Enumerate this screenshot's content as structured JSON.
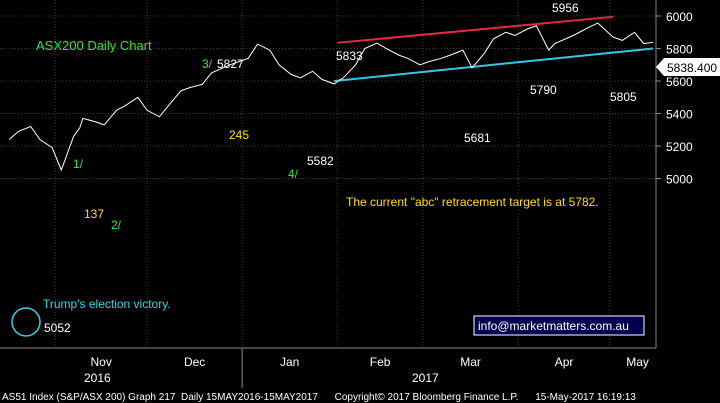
{
  "chart_data": {
    "type": "line",
    "title": "ASX200 Daily Chart",
    "ylim": [
      4960,
      6070
    ],
    "y_ticks": [
      "6000",
      "5800",
      "5600",
      "5400",
      "5200",
      "5000"
    ],
    "x_ticks": [
      "Nov",
      "Dec",
      "Jan",
      "Feb",
      "Mar",
      "Apr",
      "May"
    ],
    "year_labels": [
      "2016",
      "2017"
    ],
    "last_price": "5838.400",
    "series": [
      {
        "x": [
          "2016-10-17",
          "2016-10-20",
          "2016-10-24",
          "2016-10-27",
          "2016-10-31",
          "2016-11-03",
          "2016-11-07",
          "2016-11-09",
          "2016-11-10",
          "2016-11-14",
          "2016-11-17",
          "2016-11-21",
          "2016-11-24",
          "2016-11-28",
          "2016-12-01",
          "2016-12-05",
          "2016-12-08",
          "2016-12-12",
          "2016-12-15",
          "2016-12-19",
          "2016-12-22",
          "2016-12-28",
          "2017-01-03",
          "2017-01-06",
          "2017-01-10",
          "2017-01-13",
          "2017-01-17",
          "2017-01-20",
          "2017-01-24",
          "2017-01-27",
          "2017-01-31",
          "2017-02-03",
          "2017-02-07",
          "2017-02-10",
          "2017-02-14",
          "2017-02-17",
          "2017-02-21",
          "2017-02-24",
          "2017-02-28",
          "2017-03-03",
          "2017-03-07",
          "2017-03-10",
          "2017-03-14",
          "2017-03-17",
          "2017-03-21",
          "2017-03-24",
          "2017-03-28",
          "2017-03-31",
          "2017-04-04",
          "2017-04-07",
          "2017-04-11",
          "2017-04-13",
          "2017-04-19",
          "2017-04-24",
          "2017-04-27",
          "2017-05-02",
          "2017-05-05",
          "2017-05-09",
          "2017-05-12",
          "2017-05-15"
        ],
        "values": [
          5240,
          5290,
          5320,
          5240,
          5190,
          5052,
          5260,
          5310,
          5370,
          5350,
          5330,
          5420,
          5450,
          5500,
          5420,
          5380,
          5450,
          5540,
          5560,
          5580,
          5650,
          5700,
          5740,
          5827,
          5790,
          5700,
          5640,
          5620,
          5660,
          5610,
          5582,
          5620,
          5700,
          5800,
          5833,
          5800,
          5760,
          5740,
          5700,
          5720,
          5740,
          5760,
          5790,
          5681,
          5770,
          5860,
          5900,
          5880,
          5920,
          5940,
          5790,
          5830,
          5880,
          5930,
          5956,
          5870,
          5850,
          5900,
          5830,
          5838
        ]
      }
    ],
    "annotations": [
      {
        "text": "3/",
        "color": "#33e533"
      },
      {
        "text": "5827",
        "color": "#ffffff"
      },
      {
        "text": "5833",
        "color": "#ffffff"
      },
      {
        "text": "5956",
        "color": "#ffffff"
      },
      {
        "text": "1/",
        "color": "#33e533"
      },
      {
        "text": "245",
        "color": "#ffe100"
      },
      {
        "text": "137",
        "color": "#ffe100"
      },
      {
        "text": "2/",
        "color": "#33e533"
      },
      {
        "text": "5582",
        "color": "#ffffff"
      },
      {
        "text": "4/",
        "color": "#33e533"
      },
      {
        "text": "5681",
        "color": "#ffffff"
      },
      {
        "text": "5790",
        "color": "#ffffff"
      },
      {
        "text": "5805",
        "color": "#ffffff"
      },
      {
        "text": "5052",
        "color": "#ffffff"
      },
      {
        "text": "Trump's election victory.",
        "color": "#33d6e6"
      },
      {
        "text": "The current \"abc\" retracement target is at 5782.",
        "color": "#ffe100"
      }
    ],
    "trendlines": [
      {
        "name": "upper-channel",
        "color": "#e8283c",
        "from": [
          "2017-02-01",
          5835
        ],
        "to": [
          "2017-05-02",
          5995
        ]
      },
      {
        "name": "lower-channel",
        "color": "#32c8e6",
        "from": [
          "2017-01-31",
          5600
        ],
        "to": [
          "2017-05-15",
          5800
        ]
      }
    ],
    "watermark": "info@marketmatters.com.au",
    "grid": true
  },
  "colors": {
    "background": "#000000",
    "grid": "#3a3a3a",
    "price_line": "#ffffff",
    "title": "#33e533",
    "axis_text": "#ffffff",
    "last_price_bg": "#ffffff",
    "footer_bg": "#000000"
  },
  "footer": {
    "text": "AS51 Index (S&P/ASX 200) Graph 217  Daily 15MAY2016-15MAY2017      Copyright© 2017 Bloomberg Finance L.P.      15-May-2017 16:19:13"
  }
}
